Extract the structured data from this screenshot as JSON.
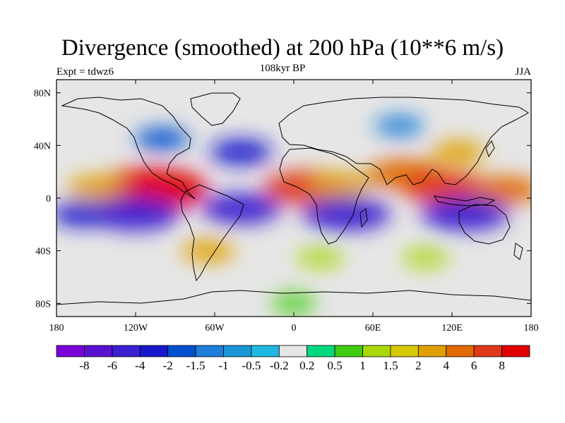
{
  "header": {
    "title": "Divergence (smoothed) at 200 hPa (10**6 m/s)",
    "subtitle": "108kyr BP",
    "left_label": "Expt = tdwz6",
    "right_label": "JJA"
  },
  "map": {
    "projection": "cylindrical-equidistant",
    "lon_range": [
      -180,
      180
    ],
    "lat_range": [
      -90,
      90
    ],
    "missing_color": "#e6e6e6",
    "x_ticks": [
      {
        "value": -180,
        "label": "180"
      },
      {
        "value": -120,
        "label": "120W"
      },
      {
        "value": -60,
        "label": "60W"
      },
      {
        "value": 0,
        "label": "0"
      },
      {
        "value": 60,
        "label": "60E"
      },
      {
        "value": 120,
        "label": "120E"
      },
      {
        "value": 180,
        "label": "180"
      }
    ],
    "y_ticks": [
      {
        "value": 80,
        "label": "80N"
      },
      {
        "value": 40,
        "label": "40N"
      },
      {
        "value": 0,
        "label": "0"
      },
      {
        "value": -40,
        "label": "40S"
      },
      {
        "value": -80,
        "label": "80S"
      }
    ]
  },
  "colorbar": {
    "colors": [
      "#7a00d8",
      "#5a10d0",
      "#3a20d0",
      "#1818cc",
      "#0050d0",
      "#1e7ed8",
      "#1a96d8",
      "#20b8e0",
      "#e6e6e6",
      "#00d880",
      "#40cc10",
      "#a8d808",
      "#d8c800",
      "#e0a000",
      "#e06a00",
      "#e03818",
      "#e00000"
    ],
    "labels": [
      "-8",
      "-6",
      "-4",
      "-2",
      "-1.5",
      "-1",
      "-0.5",
      "-0.2",
      "0.2",
      "0.5",
      "1",
      "1.5",
      "2",
      "4",
      "6",
      "8"
    ]
  },
  "chart_data": {
    "type": "heatmap",
    "title": "Divergence (smoothed) at 200 hPa (10**6 m/s)",
    "xlabel": "",
    "ylabel": "",
    "xlim": [
      -180,
      180
    ],
    "ylim": [
      -90,
      90
    ],
    "levels": [
      -8,
      -6,
      -4,
      -2,
      -1.5,
      -1,
      -0.5,
      -0.2,
      0.2,
      0.5,
      1,
      1.5,
      2,
      4,
      6,
      8
    ],
    "features": [
      {
        "lon": -108,
        "lat": 7,
        "value": 9.0
      },
      {
        "lon": -150,
        "lat": 8,
        "value": 2.5
      },
      {
        "lon": 10,
        "lat": 8,
        "value": 6.0
      },
      {
        "lon": 35,
        "lat": 10,
        "value": 3.0
      },
      {
        "lon": 85,
        "lat": 18,
        "value": 5.0
      },
      {
        "lon": 115,
        "lat": 8,
        "value": 6.0
      },
      {
        "lon": 160,
        "lat": 6,
        "value": 4.0
      },
      {
        "lon": 125,
        "lat": 35,
        "value": 2.0
      },
      {
        "lon": -120,
        "lat": -12,
        "value": -6.0
      },
      {
        "lon": -40,
        "lat": -8,
        "value": -5.0
      },
      {
        "lon": 40,
        "lat": -12,
        "value": -6.0
      },
      {
        "lon": 130,
        "lat": -12,
        "value": -6.0
      },
      {
        "lon": -160,
        "lat": -12,
        "value": -3.0
      },
      {
        "lon": -100,
        "lat": 45,
        "value": -2.0
      },
      {
        "lon": -40,
        "lat": 35,
        "value": -3.0
      },
      {
        "lon": 80,
        "lat": 55,
        "value": -1.5
      },
      {
        "lon": -65,
        "lat": -40,
        "value": 2.0
      },
      {
        "lon": 100,
        "lat": -45,
        "value": 1.0
      },
      {
        "lon": 20,
        "lat": -45,
        "value": 1.0
      },
      {
        "lon": 0,
        "lat": -80,
        "value": 0.8
      }
    ]
  }
}
